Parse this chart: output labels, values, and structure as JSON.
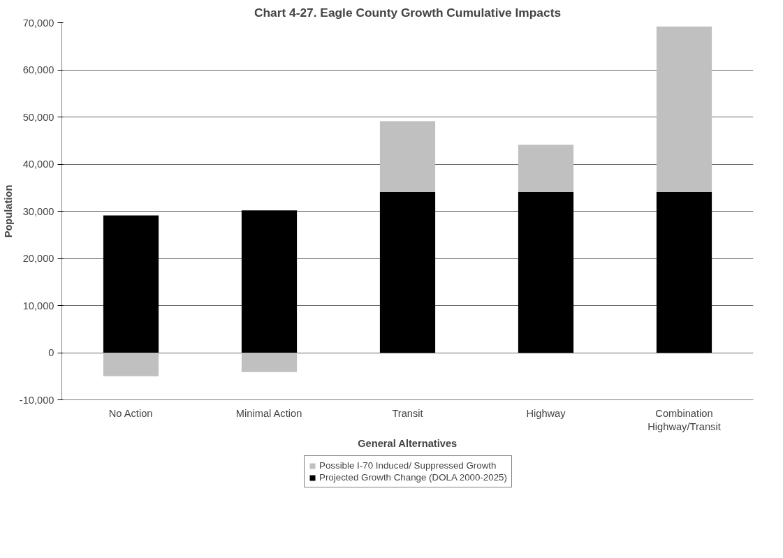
{
  "chart_data": {
    "type": "bar",
    "title": "Chart 4-27. Eagle County Growth Cumulative Impacts",
    "xlabel": "General Alternatives",
    "ylabel": "Population",
    "categories": [
      "No Action",
      "Minimal Action",
      "Transit",
      "Highway",
      "Combination\nHighway/Transit"
    ],
    "stacked": true,
    "series": [
      {
        "name": "Projected Growth Change (DOLA 2000-2025)",
        "color": "#000000",
        "values": [
          29100,
          30200,
          34100,
          34100,
          34100
        ]
      },
      {
        "name": "Possible I-70 Induced/ Suppressed Growth",
        "color": "#c0c0c0",
        "values": [
          -5000,
          -4100,
          15000,
          10000,
          35100
        ]
      }
    ],
    "ylim": [
      -10000,
      70000
    ],
    "yticks": [
      {
        "value": -10000,
        "label": "-10,000"
      },
      0,
      {
        "value": 10000,
        "label": "10,000"
      },
      {
        "value": 20000,
        "label": "20,000"
      },
      {
        "value": 30000,
        "label": "30,000"
      },
      {
        "value": 40000,
        "label": "40,000"
      },
      {
        "value": 50000,
        "label": "50,000"
      },
      {
        "value": 60000,
        "label": "60,000"
      },
      {
        "value": 70000,
        "label": "70,000"
      }
    ],
    "grid": "y",
    "legend": "bottom"
  }
}
